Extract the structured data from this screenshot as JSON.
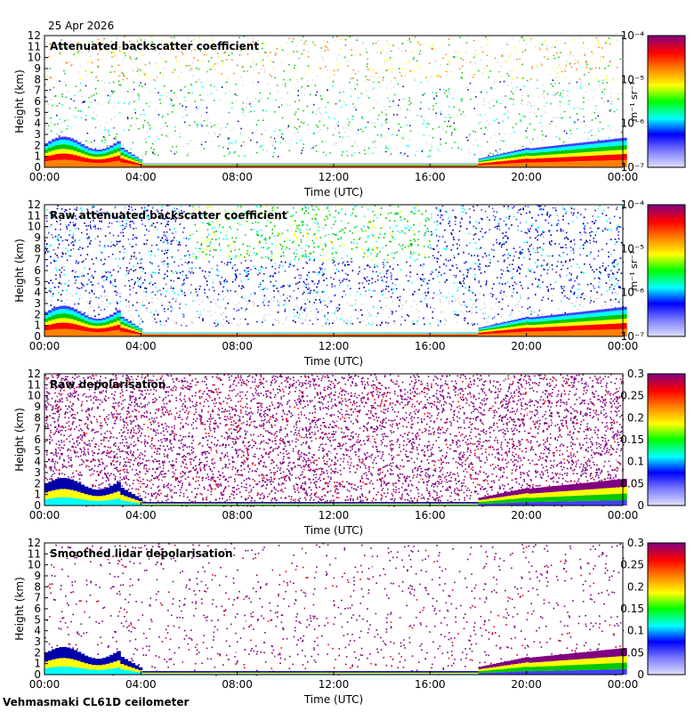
{
  "date_label": "25 Apr 2026",
  "footer": "Vehmasmaki CL61D ceilometer",
  "colorbar_unit": "m⁻¹ sr⁻¹",
  "colors": {
    "palette": [
      "#c8c8ff",
      "#4040ff",
      "#0000aa",
      "#00ffff",
      "#00c800",
      "#ffff00",
      "#ff8000",
      "#ff0000",
      "#800080"
    ],
    "noise": "#d8d8d8"
  },
  "chart_data": [
    {
      "type": "heatmap",
      "title": "Attenuated backscatter coefficient",
      "xlabel": "Time (UTC)",
      "ylabel": "Height (km)",
      "xticks": [
        "00:00",
        "04:00",
        "08:00",
        "12:00",
        "16:00",
        "20:00",
        "00:00"
      ],
      "xlim_hours": [
        0,
        24
      ],
      "ylim_km": [
        0,
        12
      ],
      "yticks": [
        "0",
        "1",
        "2",
        "3",
        "4",
        "5",
        "6",
        "7",
        "8",
        "9",
        "10",
        "11",
        "12"
      ],
      "scale": "log",
      "colorbar_ticks": [
        "10⁻⁷",
        "10⁻⁶",
        "10⁻⁵",
        "10⁻⁴"
      ],
      "colorbar_label": "m⁻¹ sr⁻¹"
    },
    {
      "type": "heatmap",
      "title": "Raw attenuated backscatter coefficient",
      "xlabel": "Time (UTC)",
      "ylabel": "Height (km)",
      "xticks": [
        "00:00",
        "04:00",
        "08:00",
        "12:00",
        "16:00",
        "20:00",
        "00:00"
      ],
      "xlim_hours": [
        0,
        24
      ],
      "ylim_km": [
        0,
        12
      ],
      "yticks": [
        "0",
        "1",
        "2",
        "3",
        "4",
        "5",
        "6",
        "7",
        "8",
        "9",
        "10",
        "11",
        "12"
      ],
      "scale": "log",
      "colorbar_ticks": [
        "10⁻⁷",
        "10⁻⁶",
        "10⁻⁵",
        "10⁻⁴"
      ],
      "colorbar_label": "m⁻¹ sr⁻¹"
    },
    {
      "type": "heatmap",
      "title": "Raw depolarisation",
      "xlabel": "Time (UTC)",
      "ylabel": "Height (km)",
      "xticks": [
        "00:00",
        "04:00",
        "08:00",
        "12:00",
        "16:00",
        "20:00",
        "00:00"
      ],
      "xlim_hours": [
        0,
        24
      ],
      "ylim_km": [
        0,
        12
      ],
      "yticks": [
        "0",
        "1",
        "2",
        "3",
        "4",
        "5",
        "6",
        "7",
        "8",
        "9",
        "10",
        "11",
        "12"
      ],
      "scale": "linear",
      "colorbar_ticks": [
        "0",
        "0.05",
        "0.1",
        "0.15",
        "0.2",
        "0.25",
        "0.3"
      ],
      "colorbar_label": ""
    },
    {
      "type": "heatmap",
      "title": "Smoothed lidar depolarisation",
      "xlabel": "Time (UTC)",
      "ylabel": "Height (km)",
      "xticks": [
        "00:00",
        "04:00",
        "08:00",
        "12:00",
        "16:00",
        "20:00",
        "00:00"
      ],
      "xlim_hours": [
        0,
        24
      ],
      "ylim_km": [
        0,
        12
      ],
      "yticks": [
        "0",
        "1",
        "2",
        "3",
        "4",
        "5",
        "6",
        "7",
        "8",
        "9",
        "10",
        "11",
        "12"
      ],
      "scale": "linear",
      "colorbar_ticks": [
        "0",
        "0.05",
        "0.1",
        "0.15",
        "0.2",
        "0.25",
        "0.3"
      ],
      "colorbar_label": ""
    }
  ]
}
